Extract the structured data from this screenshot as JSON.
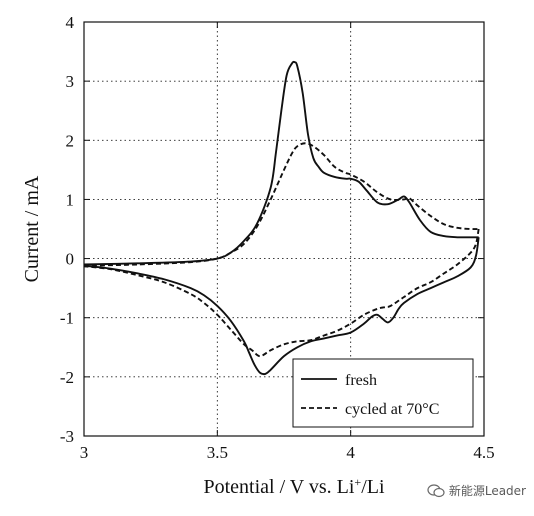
{
  "chart_data": {
    "type": "line",
    "xlabel_main": "Potential / V vs. Li",
    "xlabel_sup": "+",
    "xlabel_tail": "/Li",
    "ylabel": "Current / mA",
    "xlim": [
      3,
      4.5
    ],
    "ylim": [
      -3,
      4
    ],
    "xticks": [
      "3",
      "3.5",
      "4",
      "4.5"
    ],
    "yticks": [
      "-3",
      "-2",
      "-1",
      "0",
      "1",
      "2",
      "3",
      "4"
    ],
    "grid": "dotted",
    "legend_position": "bottom-right",
    "series": [
      {
        "name": "fresh",
        "style": "solid",
        "color": "#111111",
        "anodic": {
          "x": [
            3.0,
            3.2,
            3.4,
            3.5,
            3.55,
            3.6,
            3.65,
            3.7,
            3.72,
            3.74,
            3.76,
            3.78,
            3.79,
            3.8,
            3.82,
            3.84,
            3.86,
            3.88,
            3.9,
            3.94,
            3.98,
            4.0,
            4.03,
            4.06,
            4.1,
            4.14,
            4.18,
            4.2,
            4.22,
            4.26,
            4.3,
            4.35,
            4.4,
            4.45,
            4.48
          ],
          "y": [
            -0.1,
            -0.08,
            -0.05,
            0.0,
            0.1,
            0.3,
            0.6,
            1.2,
            1.8,
            2.5,
            3.1,
            3.3,
            3.32,
            3.25,
            2.8,
            2.1,
            1.7,
            1.55,
            1.45,
            1.38,
            1.35,
            1.35,
            1.3,
            1.15,
            0.95,
            0.92,
            1.0,
            1.05,
            0.95,
            0.65,
            0.45,
            0.38,
            0.36,
            0.36,
            0.36
          ]
        },
        "cathodic": {
          "x": [
            4.48,
            4.47,
            4.45,
            4.4,
            4.35,
            4.3,
            4.25,
            4.2,
            4.18,
            4.16,
            4.14,
            4.12,
            4.1,
            4.08,
            4.05,
            4.0,
            3.95,
            3.9,
            3.85,
            3.8,
            3.75,
            3.7,
            3.68,
            3.66,
            3.64,
            3.62,
            3.6,
            3.55,
            3.5,
            3.45,
            3.4,
            3.3,
            3.2,
            3.1,
            3.0
          ],
          "y": [
            0.36,
            0.05,
            -0.15,
            -0.3,
            -0.4,
            -0.5,
            -0.6,
            -0.75,
            -0.85,
            -1.0,
            -1.08,
            -1.02,
            -0.95,
            -0.98,
            -1.1,
            -1.25,
            -1.3,
            -1.35,
            -1.4,
            -1.5,
            -1.65,
            -1.88,
            -1.95,
            -1.93,
            -1.8,
            -1.6,
            -1.4,
            -1.05,
            -0.8,
            -0.62,
            -0.5,
            -0.35,
            -0.25,
            -0.17,
            -0.12
          ]
        }
      },
      {
        "name": "cycled at 70°C",
        "style": "dashed",
        "color": "#111111",
        "anodic": {
          "x": [
            3.0,
            3.2,
            3.4,
            3.5,
            3.55,
            3.6,
            3.65,
            3.7,
            3.75,
            3.78,
            3.8,
            3.83,
            3.86,
            3.9,
            3.94,
            3.98,
            4.0,
            4.05,
            4.1,
            4.15,
            4.2,
            4.22,
            4.25,
            4.3,
            4.35,
            4.4,
            4.45,
            4.48
          ],
          "y": [
            -0.12,
            -0.1,
            -0.06,
            0.0,
            0.1,
            0.25,
            0.55,
            1.0,
            1.5,
            1.78,
            1.9,
            1.95,
            1.9,
            1.75,
            1.55,
            1.45,
            1.42,
            1.3,
            1.12,
            1.0,
            1.0,
            1.02,
            0.9,
            0.72,
            0.58,
            0.52,
            0.5,
            0.5
          ]
        },
        "cathodic": {
          "x": [
            4.48,
            4.47,
            4.45,
            4.4,
            4.35,
            4.3,
            4.25,
            4.2,
            4.15,
            4.13,
            4.1,
            4.05,
            4.0,
            3.95,
            3.9,
            3.85,
            3.8,
            3.75,
            3.7,
            3.66,
            3.63,
            3.6,
            3.55,
            3.5,
            3.45,
            3.4,
            3.3,
            3.2,
            3.1,
            3.0
          ],
          "y": [
            0.5,
            0.25,
            0.1,
            -0.1,
            -0.25,
            -0.4,
            -0.5,
            -0.65,
            -0.8,
            -0.82,
            -0.85,
            -0.95,
            -1.1,
            -1.22,
            -1.3,
            -1.38,
            -1.4,
            -1.45,
            -1.55,
            -1.65,
            -1.55,
            -1.45,
            -1.2,
            -0.95,
            -0.75,
            -0.6,
            -0.4,
            -0.28,
            -0.18,
            -0.13
          ]
        }
      }
    ]
  },
  "watermark": {
    "text": "新能源Leader",
    "icon": "wechat-bubble-icon"
  }
}
